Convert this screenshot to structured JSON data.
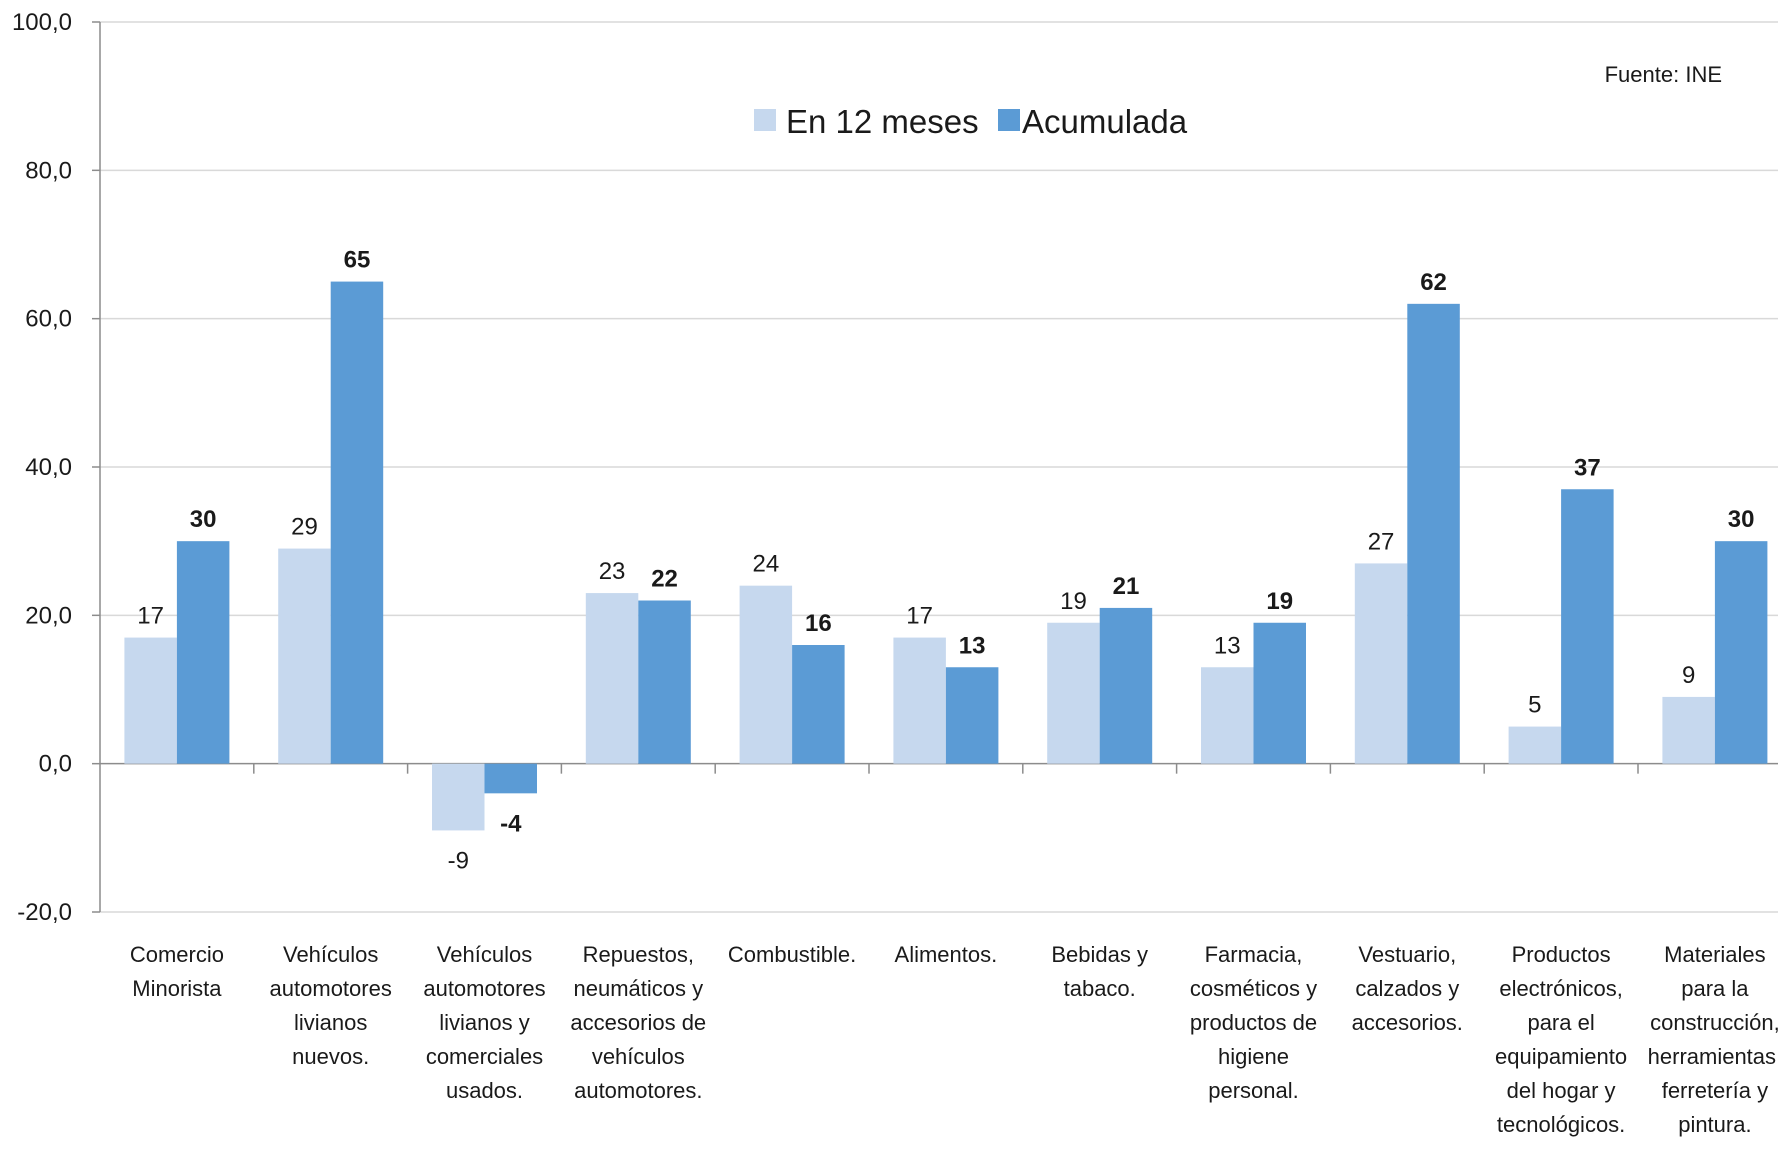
{
  "chart_data": {
    "type": "bar",
    "source": "Fuente: INE",
    "ylim": [
      -20,
      100
    ],
    "yticks": [
      -20,
      0,
      20,
      40,
      60,
      80,
      100
    ],
    "ytick_labels": [
      "-20,0",
      "0,0",
      "20,0",
      "40,0",
      "60,0",
      "80,0",
      "100,0"
    ],
    "grid": "horizontal",
    "legend_position": "top-center",
    "categories": [
      [
        "Comercio",
        "Minorista"
      ],
      [
        "Vehículos",
        "automotores",
        "livianos",
        "nuevos."
      ],
      [
        "Vehículos",
        "automotores",
        "livianos y",
        "comerciales",
        "usados."
      ],
      [
        "Repuestos,",
        "neumáticos y",
        "accesorios de",
        "vehículos",
        "automotores."
      ],
      [
        "Combustible."
      ],
      [
        "Alimentos."
      ],
      [
        "Bebidas y",
        "tabaco."
      ],
      [
        "Farmacia,",
        "cosméticos y",
        "productos de",
        "higiene",
        "personal."
      ],
      [
        "Vestuario,",
        "calzados y",
        "accesorios."
      ],
      [
        "Productos",
        "electrónicos,",
        "para el",
        "equipamiento",
        "del hogar y",
        "tecnológicos."
      ],
      [
        "Materiales",
        "para la",
        "construcción,",
        "herramientas,",
        "ferretería y",
        "pintura."
      ]
    ],
    "series": [
      {
        "name": "En 12 meses",
        "color": "#c6d8ee",
        "bold_labels": false,
        "values": [
          17,
          29,
          -9,
          23,
          24,
          17,
          19,
          13,
          27,
          5,
          9
        ],
        "labels": [
          "17",
          "29",
          "-9",
          "23",
          "24",
          "17",
          "19",
          "13",
          "27",
          "5",
          "9"
        ]
      },
      {
        "name": "Acumulada",
        "color": "#5b9bd5",
        "bold_labels": true,
        "values": [
          30,
          65,
          -4,
          22,
          16,
          13,
          21,
          19,
          62,
          37,
          30
        ],
        "labels": [
          "30",
          "65",
          "-4",
          "22",
          "16",
          "13",
          "21",
          "19",
          "62",
          "37",
          "30"
        ]
      }
    ]
  }
}
